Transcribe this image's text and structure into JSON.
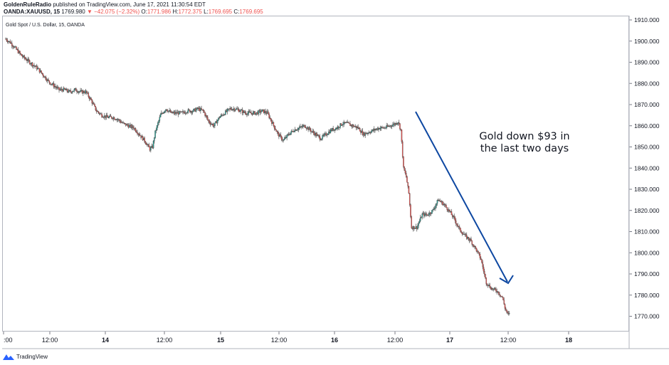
{
  "header": {
    "author": "GoldenRuleRadio",
    "published": "published on TradingView.com, June 17, 2021 11:30:54 EDT",
    "symbol": "OANDA:XAUUSD, 15",
    "last": "1769.980",
    "change": "−42.075 (−2.32%)",
    "ohlc": {
      "o_label": "O:",
      "o": "1771.986",
      "h_label": "H:",
      "h": "1772.375",
      "l_label": "L:",
      "l": "1769.695",
      "c_label": "C:",
      "c": "1769.695"
    }
  },
  "legend": "Gold Spot / U.S. Dollar, 15, OANDA",
  "annotation": {
    "line1": "Gold down $93 in",
    "line2": "the last two days"
  },
  "footer": {
    "brand": "TradingView"
  },
  "colors": {
    "up": "#26a69a",
    "down": "#ef5350",
    "wick": "#555555",
    "candle_outline": "#3d3d3d",
    "arrow": "#0d47a1"
  },
  "chart_data": {
    "type": "candlestick",
    "y_ticks": [
      "1770.000",
      "1780.000",
      "1790.000",
      "1800.000",
      "1810.000",
      "1820.000",
      "1830.000",
      "1840.000",
      "1850.000",
      "1860.000",
      "1870.000",
      "1880.000",
      "1890.000",
      "1900.000",
      "1910.000"
    ],
    "ylim": [
      1765,
      1911
    ],
    "x_ticks": [
      ":00",
      "12:00",
      "14",
      "12:00",
      "15",
      "12:00",
      "16",
      "12:00",
      "17",
      "12:00",
      "18"
    ],
    "x_tick_bold": [
      "14",
      "15",
      "16",
      "17",
      "18"
    ],
    "price_path": [
      [
        0,
        1901
      ],
      [
        2,
        1899
      ],
      [
        4,
        1896
      ],
      [
        6,
        1893
      ],
      [
        8,
        1891
      ],
      [
        10,
        1889
      ],
      [
        12,
        1887
      ],
      [
        14,
        1884
      ],
      [
        16,
        1881
      ],
      [
        18,
        1879
      ],
      [
        20,
        1877
      ],
      [
        22,
        1877
      ],
      [
        24,
        1876
      ],
      [
        26,
        1877
      ],
      [
        28,
        1876
      ],
      [
        30,
        1876
      ],
      [
        32,
        1872
      ],
      [
        34,
        1867
      ],
      [
        36,
        1865
      ],
      [
        38,
        1864
      ],
      [
        40,
        1864
      ],
      [
        42,
        1863
      ],
      [
        44,
        1861
      ],
      [
        46,
        1860
      ],
      [
        48,
        1859
      ],
      [
        50,
        1856
      ],
      [
        52,
        1853
      ],
      [
        54,
        1849
      ],
      [
        55,
        1850
      ],
      [
        56,
        1857
      ],
      [
        58,
        1865
      ],
      [
        60,
        1868
      ],
      [
        62,
        1866
      ],
      [
        64,
        1866
      ],
      [
        66,
        1866
      ],
      [
        68,
        1867
      ],
      [
        70,
        1867
      ],
      [
        72,
        1868
      ],
      [
        74,
        1867
      ],
      [
        76,
        1862
      ],
      [
        78,
        1860
      ],
      [
        80,
        1864
      ],
      [
        82,
        1866
      ],
      [
        84,
        1868
      ],
      [
        86,
        1868
      ],
      [
        88,
        1867
      ],
      [
        90,
        1866
      ],
      [
        92,
        1866
      ],
      [
        94,
        1866
      ],
      [
        96,
        1867
      ],
      [
        98,
        1866
      ],
      [
        100,
        1861
      ],
      [
        102,
        1856
      ],
      [
        104,
        1853
      ],
      [
        106,
        1856
      ],
      [
        108,
        1858
      ],
      [
        110,
        1859
      ],
      [
        112,
        1860
      ],
      [
        114,
        1858
      ],
      [
        116,
        1856
      ],
      [
        118,
        1854
      ],
      [
        120,
        1856
      ],
      [
        122,
        1858
      ],
      [
        124,
        1859
      ],
      [
        126,
        1861
      ],
      [
        128,
        1861
      ],
      [
        130,
        1860
      ],
      [
        132,
        1859
      ],
      [
        134,
        1856
      ],
      [
        136,
        1857
      ],
      [
        138,
        1858
      ],
      [
        140,
        1859
      ],
      [
        142,
        1859
      ],
      [
        144,
        1860
      ],
      [
        146,
        1861
      ],
      [
        147,
        1862
      ],
      [
        148,
        1858
      ],
      [
        149,
        1840
      ],
      [
        150,
        1836
      ],
      [
        151,
        1828
      ],
      [
        152,
        1812
      ],
      [
        154,
        1812
      ],
      [
        156,
        1818
      ],
      [
        158,
        1818
      ],
      [
        160,
        1820
      ],
      [
        162,
        1825
      ],
      [
        164,
        1823
      ],
      [
        166,
        1820
      ],
      [
        168,
        1816
      ],
      [
        170,
        1811
      ],
      [
        172,
        1808
      ],
      [
        174,
        1806
      ],
      [
        176,
        1802
      ],
      [
        178,
        1797
      ],
      [
        180,
        1786
      ],
      [
        182,
        1783
      ],
      [
        184,
        1782
      ],
      [
        186,
        1779
      ],
      [
        187,
        1774
      ],
      [
        188,
        1771
      ]
    ]
  }
}
